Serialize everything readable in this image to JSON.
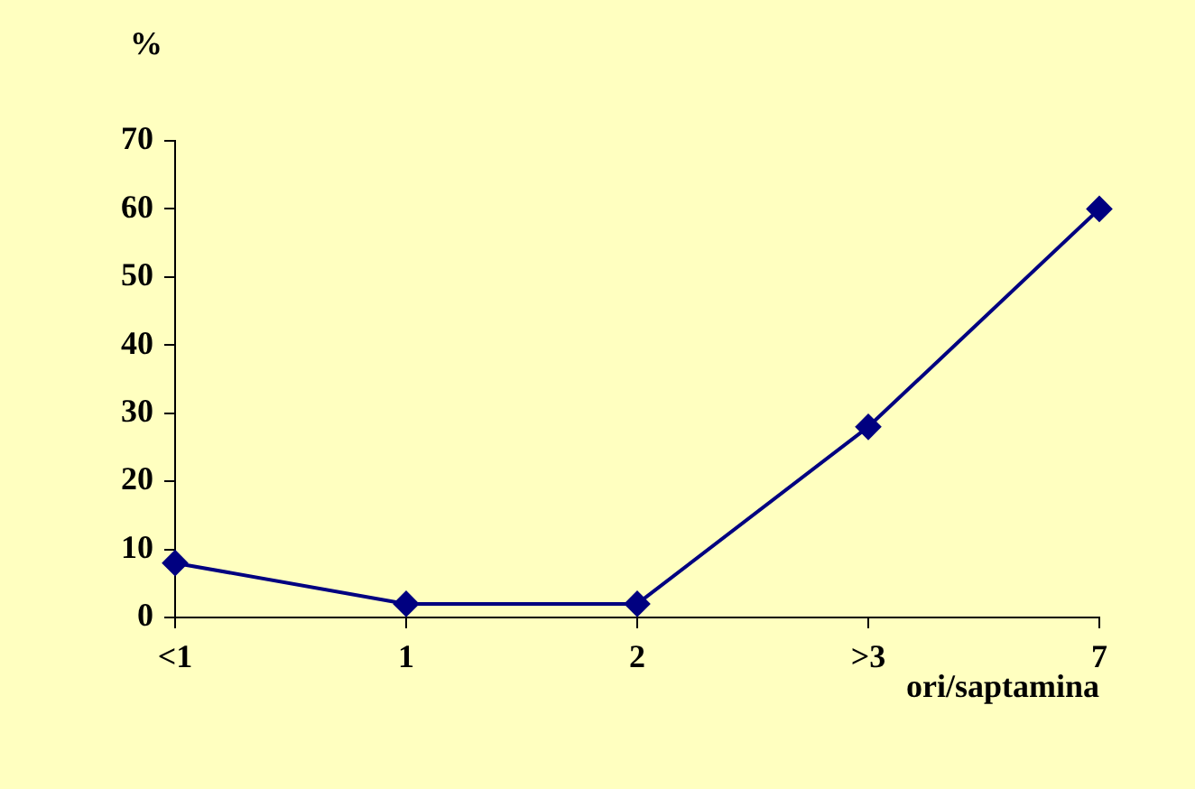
{
  "chart_data": {
    "type": "line",
    "xlabel": "ori/saptamina",
    "ylabel": "%",
    "categories": [
      "<1",
      "1",
      "2",
      ">3",
      "7"
    ],
    "series": [
      {
        "color": "#000080",
        "values": [
          8,
          2,
          2,
          28,
          60
        ]
      }
    ],
    "ylim": [
      0,
      70
    ],
    "yticks": [
      0,
      10,
      20,
      30,
      40,
      50,
      60,
      70
    ],
    "grid": false,
    "legend": false,
    "marker": "diamond",
    "line_style": "solid"
  }
}
